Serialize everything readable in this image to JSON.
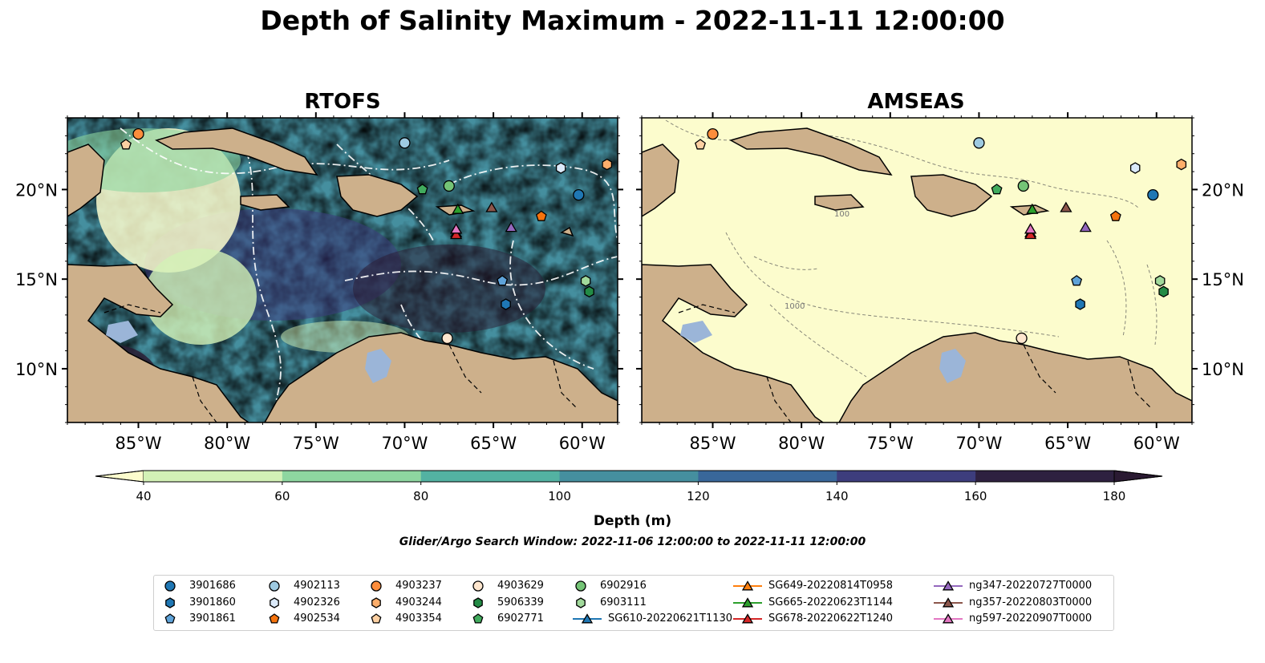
{
  "title": "Depth of Salinity Maximum - 2022-11-11 12:00:00",
  "panels": [
    {
      "title": "RTOFS",
      "lat_label_side": "left"
    },
    {
      "title": "AMSEAS",
      "lat_label_side": "right"
    }
  ],
  "map_extent": {
    "lon": [
      -89,
      -58
    ],
    "lat": [
      7,
      24
    ]
  },
  "lon_ticks": [
    {
      "value": -85,
      "label": "85°W"
    },
    {
      "value": -80,
      "label": "80°W"
    },
    {
      "value": -75,
      "label": "75°W"
    },
    {
      "value": -70,
      "label": "70°W"
    },
    {
      "value": -65,
      "label": "65°W"
    },
    {
      "value": -60,
      "label": "60°W"
    }
  ],
  "lat_ticks": [
    {
      "value": 20,
      "label": "20°N"
    },
    {
      "value": 15,
      "label": "15°N"
    },
    {
      "value": 10,
      "label": "10°N"
    }
  ],
  "contour_labels": [
    "100",
    "1000"
  ],
  "colorbar": {
    "label": "Depth (m)",
    "ticks": [
      "40",
      "60",
      "80",
      "100",
      "120",
      "140",
      "160",
      "180"
    ],
    "colors": [
      "#d3f1b6",
      "#8ed6a0",
      "#53b2a2",
      "#458f9f",
      "#39679a",
      "#3d3d7d",
      "#2e2140"
    ],
    "under_color": "#fcfccd",
    "over_color": "#2a1a32",
    "extend": "both"
  },
  "colors": {
    "land": "#cdb08b",
    "lake": "#9bb5d8",
    "amseas_fill": "#fcfccd",
    "rtofs_dark": "#2a1a32"
  },
  "search_window": "Glider/Argo Search Window: 2022-11-06 12:00:00 to 2022-11-11 12:00:00",
  "legend": [
    {
      "label": "3901686",
      "marker": "circle",
      "color": "#1f77b4"
    },
    {
      "label": "3901860",
      "marker": "hexagon",
      "color": "#1f77b4"
    },
    {
      "label": "3901861",
      "marker": "pentagon",
      "color": "#5fa3d9"
    },
    {
      "label": "4902113",
      "marker": "circle",
      "color": "#9ecae1"
    },
    {
      "label": "4902326",
      "marker": "hexagon",
      "color": "#dbeafa"
    },
    {
      "label": "4902534",
      "marker": "pentagon",
      "color": "#f5730d"
    },
    {
      "label": "4903237",
      "marker": "circle",
      "color": "#fd8d3c"
    },
    {
      "label": "4903244",
      "marker": "hexagon",
      "color": "#fdae6b"
    },
    {
      "label": "4903354",
      "marker": "pentagon",
      "color": "#fdd0a2"
    },
    {
      "label": "4903629",
      "marker": "circle",
      "color": "#fee6ce"
    },
    {
      "label": "5906339",
      "marker": "hexagon",
      "color": "#238b45"
    },
    {
      "label": "6902771",
      "marker": "pentagon",
      "color": "#41ab5d"
    },
    {
      "label": "6902916",
      "marker": "circle",
      "color": "#74c476"
    },
    {
      "label": "6903111",
      "marker": "hexagon",
      "color": "#a1d99b"
    },
    {
      "label": "SG610-20220621T1130",
      "marker": "triangle",
      "color": "#1f77b4"
    },
    {
      "label": "SG649-20220814T0958",
      "marker": "triangle",
      "color": "#ff7f0e"
    },
    {
      "label": "SG665-20220623T1144",
      "marker": "triangle",
      "color": "#2ca02c"
    },
    {
      "label": "SG678-20220622T1240",
      "marker": "triangle",
      "color": "#d62728"
    },
    {
      "label": "ng347-20220727T0000",
      "marker": "triangle",
      "color": "#9467bd"
    },
    {
      "label": "ng357-20220803T0000",
      "marker": "triangle",
      "color": "#8c564b"
    },
    {
      "label": "ng597-20220907T0000",
      "marker": "triangle",
      "color": "#e377c2"
    }
  ],
  "points": [
    {
      "id": "3901686",
      "lon": -60.2,
      "lat": 19.7
    },
    {
      "id": "3901860",
      "lon": -64.3,
      "lat": 13.6
    },
    {
      "id": "3901861",
      "lon": -64.5,
      "lat": 14.9
    },
    {
      "id": "4902113",
      "lon": -70.0,
      "lat": 22.6
    },
    {
      "id": "4902326",
      "lon": -61.2,
      "lat": 21.2
    },
    {
      "id": "4902534",
      "lon": -62.3,
      "lat": 18.5
    },
    {
      "id": "4903237",
      "lon": -85.0,
      "lat": 23.1
    },
    {
      "id": "4903244",
      "lon": -58.6,
      "lat": 21.4
    },
    {
      "id": "4903354",
      "lon": -85.7,
      "lat": 22.5
    },
    {
      "id": "4903629",
      "lon": -67.6,
      "lat": 11.7
    },
    {
      "id": "5906339",
      "lon": -59.6,
      "lat": 14.3
    },
    {
      "id": "6902771",
      "lon": -69.0,
      "lat": 20.0
    },
    {
      "id": "6902916",
      "lon": -67.5,
      "lat": 20.2
    },
    {
      "id": "6903111",
      "lon": -59.8,
      "lat": 14.9
    },
    {
      "id": "SG610-20220621T1130",
      "lon": -67.1,
      "lat": 17.6
    },
    {
      "id": "SG649-20220814T0958",
      "lon": -67.1,
      "lat": 17.8
    },
    {
      "id": "SG665-20220623T1144",
      "lon": -67.0,
      "lat": 18.9
    },
    {
      "id": "SG678-20220622T1240",
      "lon": -67.1,
      "lat": 17.5
    },
    {
      "id": "ng347-20220727T0000",
      "lon": -64.0,
      "lat": 17.9
    },
    {
      "id": "ng357-20220803T0000",
      "lon": -65.1,
      "lat": 19.0
    },
    {
      "id": "ng597-20220907T0000",
      "lon": -67.1,
      "lat": 17.8
    }
  ]
}
